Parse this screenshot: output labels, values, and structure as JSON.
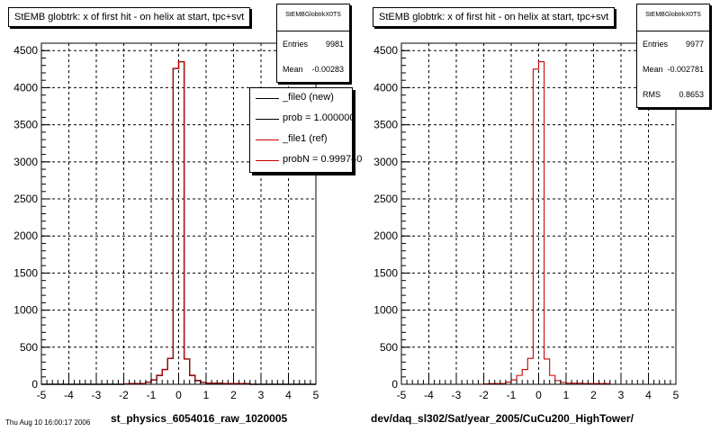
{
  "colors": {
    "new": "#000000",
    "ref": "#cc0000"
  },
  "footer": "Thu Aug 10 16:00:17 2006",
  "charts": [
    {
      "title": "StEMB globtrk: x of first hit - on helix at start, tpc+svt",
      "xlabel": "st_physics_6054016_raw_1020005",
      "stats": {
        "name": "StEMBGlobtrkX0TS",
        "rows": [
          {
            "label": "Entries",
            "value": "9981"
          },
          {
            "label": "Mean",
            "value": "-0.00283"
          }
        ]
      },
      "legend": [
        {
          "label": "_file0 (new)",
          "color": "#000000"
        },
        {
          "label": "prob = 1.000000",
          "color": "#000000"
        },
        {
          "label": "_file1 (ref)",
          "color": "#cc0000"
        },
        {
          "label": "probN = 0.999740",
          "color": "#cc0000"
        }
      ]
    },
    {
      "title": "StEMB globtrk: x of first hit - on helix at start, tpc+svt",
      "xlabel": "dev/daq_sl302/Sat/year_2005/CuCu200_HighTower/",
      "stats": {
        "name": "StEMBGlobtrkX0TS",
        "rows": [
          {
            "label": "Entries",
            "value": "9977"
          },
          {
            "label": "Mean",
            "value": "-0.002781"
          },
          {
            "label": "RMS",
            "value": "0.8653"
          }
        ]
      }
    }
  ],
  "chart_data": [
    {
      "type": "line",
      "title": "StEMB globtrk: x of first hit - on helix at start, tpc+svt",
      "xlabel": "st_physics_6054016_raw_1020005",
      "ylabel": "",
      "xlim": [
        -5,
        5
      ],
      "ylim": [
        0,
        4600
      ],
      "xticks": [
        -5,
        -4,
        -3,
        -2,
        -1,
        0,
        1,
        2,
        3,
        4,
        5
      ],
      "yticks": [
        0,
        500,
        1000,
        1500,
        2000,
        2500,
        3000,
        3500,
        4000,
        4500
      ],
      "grid": true,
      "legend_position": "top-right",
      "bin_edges": [
        -5.0,
        -4.8,
        -4.6,
        -4.4,
        -4.2,
        -4.0,
        -3.8,
        -3.6,
        -3.4,
        -3.2,
        -3.0,
        -2.8,
        -2.6,
        -2.4,
        -2.2,
        -2.0,
        -1.8,
        -1.6,
        -1.4,
        -1.2,
        -1.0,
        -0.8,
        -0.6,
        -0.4,
        -0.2,
        0.0,
        0.2,
        0.4,
        0.6,
        0.8,
        1.0,
        1.2,
        1.4,
        1.6,
        1.8,
        2.0,
        2.2,
        2.4,
        2.6,
        2.8,
        3.0,
        3.2,
        3.4,
        3.6,
        3.8,
        4.0,
        4.2,
        4.4,
        4.6,
        4.8,
        5.0
      ],
      "series": [
        {
          "name": "_file0 (new)",
          "values": [
            0,
            0,
            0,
            0,
            0,
            0,
            0,
            0,
            0,
            0,
            0,
            0,
            0,
            0,
            0,
            5,
            10,
            10,
            10,
            30,
            60,
            120,
            200,
            350,
            4260,
            4350,
            340,
            120,
            50,
            25,
            15,
            15,
            15,
            10,
            10,
            10,
            10,
            10,
            0,
            0,
            0,
            0,
            0,
            0,
            0,
            0,
            0,
            0,
            0,
            0
          ]
        },
        {
          "name": "_file1 (ref)",
          "values": [
            0,
            0,
            0,
            0,
            0,
            0,
            0,
            0,
            0,
            0,
            0,
            0,
            0,
            0,
            0,
            5,
            10,
            10,
            10,
            30,
            60,
            120,
            200,
            350,
            4260,
            4350,
            340,
            120,
            50,
            25,
            15,
            15,
            15,
            10,
            10,
            10,
            10,
            10,
            0,
            0,
            0,
            0,
            0,
            0,
            0,
            0,
            0,
            0,
            0,
            0
          ]
        }
      ]
    },
    {
      "type": "line",
      "title": "StEMB globtrk: x of first hit - on helix at start, tpc+svt",
      "xlabel": "dev/daq_sl302/Sat/year_2005/CuCu200_HighTower/",
      "ylabel": "",
      "xlim": [
        -5,
        5
      ],
      "ylim": [
        0,
        4600
      ],
      "xticks": [
        -5,
        -4,
        -3,
        -2,
        -1,
        0,
        1,
        2,
        3,
        4,
        5
      ],
      "yticks": [
        0,
        500,
        1000,
        1500,
        2000,
        2500,
        3000,
        3500,
        4000,
        4500
      ],
      "grid": true,
      "bin_edges": [
        -5.0,
        -4.8,
        -4.6,
        -4.4,
        -4.2,
        -4.0,
        -3.8,
        -3.6,
        -3.4,
        -3.2,
        -3.0,
        -2.8,
        -2.6,
        -2.4,
        -2.2,
        -2.0,
        -1.8,
        -1.6,
        -1.4,
        -1.2,
        -1.0,
        -0.8,
        -0.6,
        -0.4,
        -0.2,
        0.0,
        0.2,
        0.4,
        0.6,
        0.8,
        1.0,
        1.2,
        1.4,
        1.6,
        1.8,
        2.0,
        2.2,
        2.4,
        2.6,
        2.8,
        3.0,
        3.2,
        3.4,
        3.6,
        3.8,
        4.0,
        4.2,
        4.4,
        4.6,
        4.8,
        5.0
      ],
      "series": [
        {
          "values": [
            0,
            0,
            0,
            0,
            0,
            0,
            0,
            0,
            0,
            0,
            0,
            0,
            0,
            0,
            0,
            5,
            10,
            10,
            10,
            30,
            60,
            120,
            200,
            350,
            4250,
            4350,
            340,
            120,
            50,
            25,
            15,
            15,
            15,
            10,
            10,
            10,
            10,
            10,
            0,
            0,
            0,
            0,
            0,
            0,
            0,
            0,
            0,
            0,
            0,
            0
          ]
        }
      ]
    }
  ]
}
